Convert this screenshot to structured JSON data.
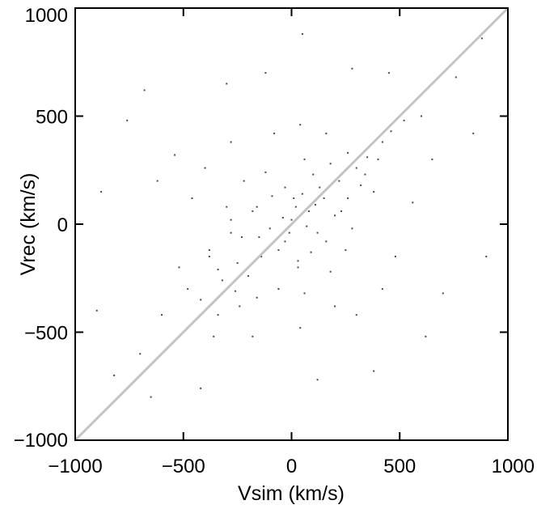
{
  "chart_data": {
    "type": "scatter",
    "title": "",
    "xlabel": "Vsim (km/s)",
    "ylabel": "Vrec (km/s)",
    "xlim": [
      -1000,
      1000
    ],
    "ylim": [
      -1000,
      1000
    ],
    "x_ticks": [
      "−1000",
      "−500",
      "0",
      "500",
      "1000"
    ],
    "y_ticks": [
      "−1000",
      "−500",
      "0",
      "500",
      "1000"
    ],
    "x_tick_values": [
      -1000,
      -500,
      0,
      500,
      1000
    ],
    "y_tick_values": [
      -1000,
      -500,
      0,
      500,
      1000
    ],
    "grid": false,
    "legend": "none",
    "reference_line": {
      "from": [
        -1000,
        -1000
      ],
      "to": [
        1000,
        1000
      ],
      "color": "#c4c4c4"
    },
    "point_color": "#4a4a4a",
    "series": [
      {
        "values": [
          [
            -250,
            -180
          ],
          [
            -150,
            -60
          ],
          [
            -60,
            -120
          ],
          [
            0,
            20
          ],
          [
            80,
            60
          ],
          [
            150,
            120
          ],
          [
            220,
            200
          ],
          [
            300,
            260
          ],
          [
            350,
            310
          ],
          [
            -320,
            -260
          ],
          [
            -200,
            -240
          ],
          [
            -100,
            -20
          ],
          [
            50,
            140
          ],
          [
            120,
            -40
          ],
          [
            200,
            40
          ],
          [
            260,
            120
          ],
          [
            -180,
            60
          ],
          [
            -280,
            -40
          ],
          [
            30,
            -200
          ],
          [
            100,
            230
          ],
          [
            -420,
            -350
          ],
          [
            -380,
            -120
          ],
          [
            -300,
            80
          ],
          [
            -220,
            200
          ],
          [
            -120,
            240
          ],
          [
            180,
            280
          ],
          [
            320,
            180
          ],
          [
            400,
            300
          ],
          [
            420,
            380
          ],
          [
            250,
            -120
          ],
          [
            180,
            -220
          ],
          [
            60,
            -320
          ],
          [
            -60,
            -300
          ],
          [
            -160,
            -340
          ],
          [
            -240,
            -380
          ],
          [
            -340,
            -420
          ],
          [
            460,
            430
          ],
          [
            520,
            480
          ],
          [
            -480,
            -300
          ],
          [
            -520,
            -200
          ],
          [
            -600,
            -420
          ],
          [
            -620,
            200
          ],
          [
            -540,
            320
          ],
          [
            -700,
            -600
          ],
          [
            600,
            500
          ],
          [
            650,
            300
          ],
          [
            560,
            100
          ],
          [
            480,
            -150
          ],
          [
            420,
            -300
          ],
          [
            300,
            -420
          ],
          [
            -80,
            420
          ],
          [
            40,
            460
          ],
          [
            160,
            420
          ],
          [
            -280,
            380
          ],
          [
            -400,
            260
          ],
          [
            -460,
            120
          ],
          [
            -360,
            -520
          ],
          [
            -180,
            -520
          ],
          [
            40,
            -480
          ],
          [
            200,
            -380
          ],
          [
            -820,
            -700
          ],
          [
            -900,
            -400
          ],
          [
            -760,
            480
          ],
          [
            -680,
            620
          ],
          [
            760,
            680
          ],
          [
            840,
            420
          ],
          [
            700,
            -320
          ],
          [
            620,
            -520
          ],
          [
            -120,
            700
          ],
          [
            280,
            720
          ],
          [
            -300,
            650
          ],
          [
            450,
            700
          ],
          [
            -650,
            -800
          ],
          [
            -420,
            -760
          ],
          [
            120,
            -720
          ],
          [
            380,
            -680
          ],
          [
            880,
            860
          ],
          [
            -880,
            150
          ],
          [
            900,
            -150
          ],
          [
            50,
            880
          ],
          [
            -10,
            -40
          ],
          [
            20,
            80
          ],
          [
            -40,
            30
          ],
          [
            70,
            -10
          ],
          [
            110,
            90
          ],
          [
            -90,
            -90
          ],
          [
            130,
            170
          ],
          [
            -140,
            -150
          ],
          [
            10,
            120
          ],
          [
            -30,
            -80
          ],
          [
            260,
            330
          ],
          [
            -260,
            -310
          ],
          [
            340,
            230
          ],
          [
            -340,
            -210
          ],
          [
            90,
            -130
          ],
          [
            -90,
            130
          ],
          [
            230,
            60
          ],
          [
            -230,
            -60
          ],
          [
            160,
            -80
          ],
          [
            -160,
            80
          ],
          [
            -30,
            170
          ],
          [
            30,
            -170
          ],
          [
            190,
            190
          ],
          [
            -190,
            -190
          ],
          [
            280,
            -20
          ],
          [
            -280,
            20
          ],
          [
            60,
            300
          ],
          [
            -60,
            -300
          ],
          [
            380,
            150
          ],
          [
            -380,
            -150
          ]
        ]
      }
    ]
  }
}
